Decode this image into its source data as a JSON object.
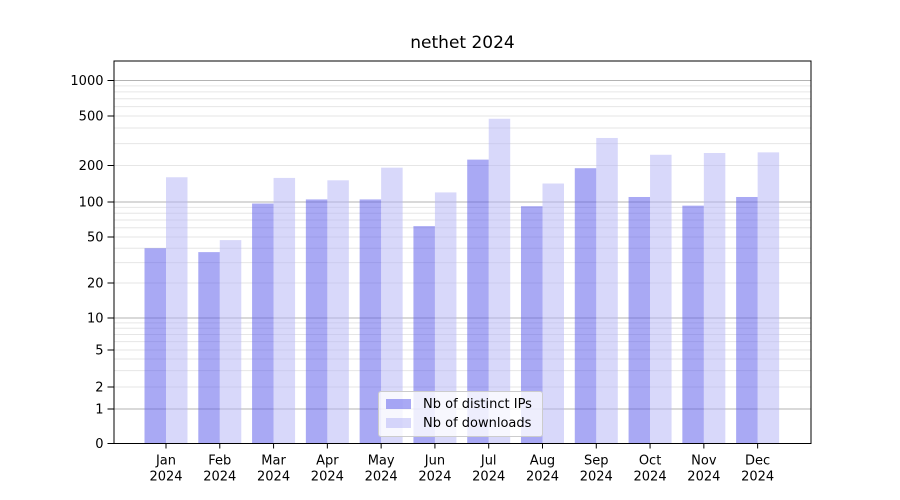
{
  "title": "nethet 2024",
  "chart_data": {
    "type": "bar",
    "title": "nethet 2024",
    "categories": [
      "Jan 2024",
      "Feb 2024",
      "Mar 2024",
      "Apr 2024",
      "May 2024",
      "Jun 2024",
      "Jul 2024",
      "Aug 2024",
      "Sep 2024",
      "Oct 2024",
      "Nov 2024",
      "Dec 2024"
    ],
    "x_tick_top": [
      "Jan",
      "Feb",
      "Mar",
      "Apr",
      "May",
      "Jun",
      "Jul",
      "Aug",
      "Sep",
      "Oct",
      "Nov",
      "Dec"
    ],
    "x_tick_bottom": "2024",
    "series": [
      {
        "name": "Nb of distinct IPs",
        "color": "#5a5aea",
        "opacity": 0.52,
        "values": [
          40,
          37,
          97,
          105,
          105,
          62,
          223,
          92,
          190,
          110,
          93,
          110
        ]
      },
      {
        "name": "Nb of downloads",
        "color": "#b4b4f5",
        "opacity": 0.52,
        "values": [
          160,
          47,
          158,
          151,
          192,
          120,
          475,
          142,
          333,
          244,
          252,
          255
        ]
      }
    ],
    "y_scale": "symlog",
    "y_ticks": [
      0,
      1,
      2,
      5,
      10,
      20,
      50,
      100,
      200,
      500,
      1000
    ],
    "ylim": [
      0,
      1400
    ],
    "xlabel": "",
    "ylabel": "",
    "grid": "horizontal",
    "grid_major_color": "#b3b3b3",
    "grid_minor_color": "#e6e6e6",
    "legend_position": "lower-center"
  }
}
